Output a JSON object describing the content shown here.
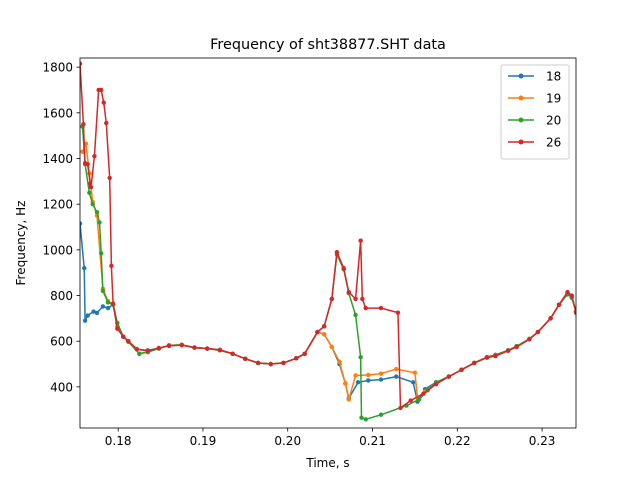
{
  "chart_data": {
    "type": "line",
    "title": "Frequency of sht38877.SHT data",
    "xlabel": "Time, s",
    "ylabel": "Frequency, Hz",
    "xlim": [
      0.1755,
      0.234
    ],
    "ylim": [
      220,
      1840
    ],
    "xticks": [
      0.18,
      0.19,
      0.2,
      0.21,
      0.22,
      0.23
    ],
    "xtick_labels": [
      "0.18",
      "0.19",
      "0.20",
      "0.21",
      "0.22",
      "0.23"
    ],
    "yticks": [
      400,
      600,
      800,
      1000,
      1200,
      1400,
      1600,
      1800
    ],
    "ytick_labels": [
      "400",
      "600",
      "800",
      "1000",
      "1200",
      "1400",
      "1600",
      "1800"
    ],
    "grid": false,
    "legend_position": "top-right",
    "series": [
      {
        "name": "18",
        "color": "#1f77b4",
        "points": [
          [
            0.1755,
            1115
          ],
          [
            0.176,
            920
          ],
          [
            0.1761,
            690
          ],
          [
            0.1764,
            712
          ],
          [
            0.1771,
            730
          ],
          [
            0.1775,
            724
          ],
          [
            0.1782,
            752
          ],
          [
            0.1788,
            745
          ],
          [
            0.1794,
            760
          ],
          [
            0.1799,
            680
          ],
          [
            0.1806,
            620
          ],
          [
            0.1812,
            600
          ],
          [
            0.1822,
            565
          ],
          [
            0.1835,
            560
          ],
          [
            0.1848,
            570
          ],
          [
            0.186,
            580
          ],
          [
            0.1875,
            583
          ],
          [
            0.189,
            572
          ],
          [
            0.1905,
            568
          ],
          [
            0.192,
            562
          ],
          [
            0.1935,
            545
          ],
          [
            0.195,
            523
          ],
          [
            0.1965,
            505
          ],
          [
            0.198,
            500
          ],
          [
            0.1995,
            505
          ],
          [
            0.201,
            525
          ],
          [
            0.202,
            545
          ],
          [
            0.2035,
            640
          ],
          [
            0.2043,
            630
          ],
          [
            0.2052,
            575
          ],
          [
            0.2061,
            500
          ],
          [
            0.2068,
            415
          ],
          [
            0.2072,
            350
          ],
          [
            0.2083,
            420
          ],
          [
            0.2095,
            428
          ],
          [
            0.211,
            432
          ],
          [
            0.2128,
            445
          ],
          [
            0.2148,
            420
          ],
          [
            0.2153,
            335
          ],
          [
            0.2162,
            390
          ],
          [
            0.2175,
            420
          ],
          [
            0.219,
            445
          ],
          [
            0.2205,
            475
          ],
          [
            0.222,
            505
          ],
          [
            0.2235,
            530
          ],
          [
            0.2245,
            540
          ],
          [
            0.226,
            560
          ],
          [
            0.227,
            578
          ],
          [
            0.2285,
            610
          ],
          [
            0.2295,
            640
          ],
          [
            0.231,
            700
          ],
          [
            0.232,
            760
          ],
          [
            0.233,
            805
          ],
          [
            0.2335,
            795
          ],
          [
            0.234,
            730
          ],
          [
            0.2343,
            645
          ]
        ]
      },
      {
        "name": "19",
        "color": "#ff7f0e",
        "points": [
          [
            0.1758,
            1430
          ],
          [
            0.1762,
            1465
          ],
          [
            0.1766,
            1335
          ],
          [
            0.177,
            1210
          ],
          [
            0.1775,
            1150
          ],
          [
            0.1782,
            830
          ],
          [
            0.1788,
            775
          ],
          [
            0.1794,
            762
          ],
          [
            0.1799,
            665
          ],
          [
            0.1806,
            620
          ],
          [
            0.1812,
            598
          ],
          [
            0.1825,
            545
          ],
          [
            0.1835,
            555
          ],
          [
            0.1848,
            568
          ],
          [
            0.186,
            582
          ],
          [
            0.1875,
            584
          ],
          [
            0.189,
            572
          ],
          [
            0.1905,
            568
          ],
          [
            0.192,
            560
          ],
          [
            0.1935,
            545
          ],
          [
            0.195,
            523
          ],
          [
            0.1965,
            505
          ],
          [
            0.198,
            500
          ],
          [
            0.1995,
            505
          ],
          [
            0.201,
            525
          ],
          [
            0.202,
            545
          ],
          [
            0.2035,
            640
          ],
          [
            0.2043,
            630
          ],
          [
            0.2052,
            575
          ],
          [
            0.2061,
            510
          ],
          [
            0.2068,
            415
          ],
          [
            0.2072,
            345
          ],
          [
            0.208,
            450
          ],
          [
            0.2095,
            452
          ],
          [
            0.211,
            458
          ],
          [
            0.2128,
            478
          ],
          [
            0.215,
            462
          ],
          [
            0.2153,
            355
          ],
          [
            0.2162,
            380
          ],
          [
            0.2175,
            418
          ],
          [
            0.219,
            445
          ],
          [
            0.2205,
            475
          ],
          [
            0.222,
            505
          ],
          [
            0.2235,
            530
          ],
          [
            0.2245,
            540
          ],
          [
            0.226,
            560
          ],
          [
            0.227,
            578
          ],
          [
            0.2285,
            610
          ],
          [
            0.2295,
            640
          ],
          [
            0.231,
            700
          ],
          [
            0.232,
            760
          ],
          [
            0.233,
            810
          ],
          [
            0.2335,
            795
          ],
          [
            0.234,
            730
          ],
          [
            0.2343,
            645
          ]
        ]
      },
      {
        "name": "20",
        "color": "#2ca02c",
        "points": [
          [
            0.1758,
            1540
          ],
          [
            0.1761,
            1375
          ],
          [
            0.1766,
            1250
          ],
          [
            0.177,
            1200
          ],
          [
            0.1775,
            1165
          ],
          [
            0.1778,
            1120
          ],
          [
            0.178,
            985
          ],
          [
            0.1782,
            820
          ],
          [
            0.1788,
            770
          ],
          [
            0.1794,
            760
          ],
          [
            0.1799,
            680
          ],
          [
            0.1806,
            620
          ],
          [
            0.1812,
            598
          ],
          [
            0.1825,
            545
          ],
          [
            0.1835,
            552
          ],
          [
            0.1848,
            568
          ],
          [
            0.186,
            582
          ],
          [
            0.1875,
            584
          ],
          [
            0.189,
            572
          ],
          [
            0.1905,
            568
          ],
          [
            0.192,
            560
          ],
          [
            0.1935,
            545
          ],
          [
            0.195,
            523
          ],
          [
            0.1965,
            505
          ],
          [
            0.198,
            500
          ],
          [
            0.1995,
            505
          ],
          [
            0.201,
            525
          ],
          [
            0.202,
            545
          ],
          [
            0.2035,
            640
          ],
          [
            0.2043,
            665
          ],
          [
            0.2052,
            785
          ],
          [
            0.2058,
            980
          ],
          [
            0.2066,
            915
          ],
          [
            0.2072,
            810
          ],
          [
            0.208,
            715
          ],
          [
            0.2086,
            530
          ],
          [
            0.2087,
            265
          ],
          [
            0.2092,
            258
          ],
          [
            0.211,
            278
          ],
          [
            0.214,
            318
          ],
          [
            0.2155,
            345
          ],
          [
            0.2165,
            385
          ],
          [
            0.2175,
            420
          ],
          [
            0.219,
            445
          ],
          [
            0.2205,
            475
          ],
          [
            0.222,
            505
          ],
          [
            0.2235,
            530
          ],
          [
            0.2245,
            540
          ],
          [
            0.226,
            560
          ],
          [
            0.227,
            578
          ],
          [
            0.2285,
            610
          ],
          [
            0.2295,
            640
          ],
          [
            0.231,
            700
          ],
          [
            0.232,
            760
          ],
          [
            0.233,
            810
          ],
          [
            0.2335,
            790
          ],
          [
            0.234,
            730
          ],
          [
            0.2343,
            645
          ]
        ]
      },
      {
        "name": "26",
        "color": "#d62728",
        "points": [
          [
            0.1755,
            1815
          ],
          [
            0.1759,
            1550
          ],
          [
            0.1761,
            1380
          ],
          [
            0.1764,
            1375
          ],
          [
            0.1767,
            1290
          ],
          [
            0.1768,
            1275
          ],
          [
            0.1772,
            1410
          ],
          [
            0.1777,
            1700
          ],
          [
            0.178,
            1700
          ],
          [
            0.1783,
            1645
          ],
          [
            0.1786,
            1555
          ],
          [
            0.179,
            1315
          ],
          [
            0.1792,
            930
          ],
          [
            0.1794,
            765
          ],
          [
            0.1799,
            655
          ],
          [
            0.1806,
            620
          ],
          [
            0.1812,
            600
          ],
          [
            0.1822,
            565
          ],
          [
            0.1835,
            558
          ],
          [
            0.1848,
            570
          ],
          [
            0.186,
            580
          ],
          [
            0.1875,
            583
          ],
          [
            0.189,
            572
          ],
          [
            0.1905,
            568
          ],
          [
            0.192,
            562
          ],
          [
            0.1935,
            545
          ],
          [
            0.195,
            523
          ],
          [
            0.1965,
            505
          ],
          [
            0.198,
            500
          ],
          [
            0.1995,
            505
          ],
          [
            0.201,
            525
          ],
          [
            0.202,
            545
          ],
          [
            0.2035,
            640
          ],
          [
            0.2043,
            665
          ],
          [
            0.2052,
            785
          ],
          [
            0.2058,
            990
          ],
          [
            0.2066,
            920
          ],
          [
            0.2072,
            815
          ],
          [
            0.208,
            785
          ],
          [
            0.2086,
            1040
          ],
          [
            0.2088,
            785
          ],
          [
            0.2092,
            745
          ],
          [
            0.211,
            745
          ],
          [
            0.213,
            725
          ],
          [
            0.2133,
            308
          ],
          [
            0.2145,
            340
          ],
          [
            0.216,
            370
          ],
          [
            0.2175,
            412
          ],
          [
            0.219,
            445
          ],
          [
            0.2205,
            475
          ],
          [
            0.222,
            505
          ],
          [
            0.2235,
            528
          ],
          [
            0.2245,
            535
          ],
          [
            0.226,
            558
          ],
          [
            0.227,
            575
          ],
          [
            0.2285,
            608
          ],
          [
            0.2295,
            640
          ],
          [
            0.231,
            700
          ],
          [
            0.232,
            760
          ],
          [
            0.233,
            815
          ],
          [
            0.2335,
            800
          ],
          [
            0.234,
            725
          ],
          [
            0.2343,
            645
          ]
        ]
      }
    ]
  }
}
